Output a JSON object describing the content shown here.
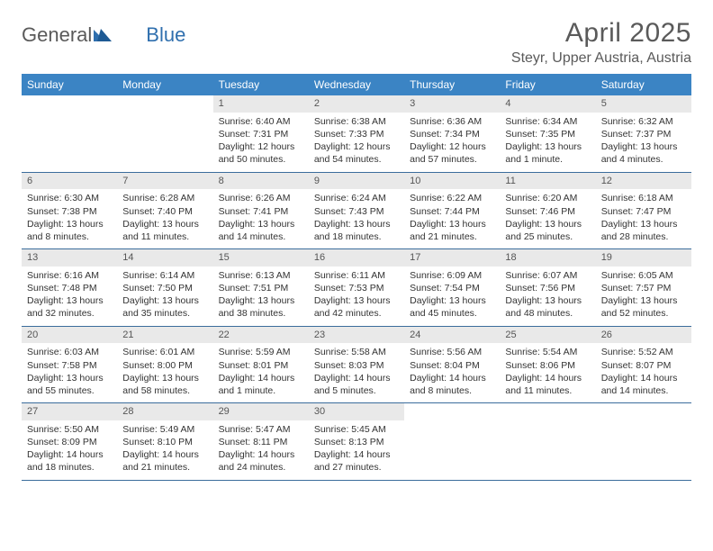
{
  "logo": {
    "text1": "General",
    "text2": "Blue"
  },
  "title": "April 2025",
  "location": "Steyr, Upper Austria, Austria",
  "colors": {
    "header_bg": "#3b84c4",
    "header_text": "#ffffff",
    "daynum_bg": "#e9e9e9",
    "row_border": "#3b6d9c",
    "body_text": "#333333",
    "title_text": "#5a5a5a"
  },
  "weekdays": [
    "Sunday",
    "Monday",
    "Tuesday",
    "Wednesday",
    "Thursday",
    "Friday",
    "Saturday"
  ],
  "weeks": [
    [
      {
        "empty": true
      },
      {
        "empty": true
      },
      {
        "day": "1",
        "sunrise": "Sunrise: 6:40 AM",
        "sunset": "Sunset: 7:31 PM",
        "daylight": "Daylight: 12 hours and 50 minutes."
      },
      {
        "day": "2",
        "sunrise": "Sunrise: 6:38 AM",
        "sunset": "Sunset: 7:33 PM",
        "daylight": "Daylight: 12 hours and 54 minutes."
      },
      {
        "day": "3",
        "sunrise": "Sunrise: 6:36 AM",
        "sunset": "Sunset: 7:34 PM",
        "daylight": "Daylight: 12 hours and 57 minutes."
      },
      {
        "day": "4",
        "sunrise": "Sunrise: 6:34 AM",
        "sunset": "Sunset: 7:35 PM",
        "daylight": "Daylight: 13 hours and 1 minute."
      },
      {
        "day": "5",
        "sunrise": "Sunrise: 6:32 AM",
        "sunset": "Sunset: 7:37 PM",
        "daylight": "Daylight: 13 hours and 4 minutes."
      }
    ],
    [
      {
        "day": "6",
        "sunrise": "Sunrise: 6:30 AM",
        "sunset": "Sunset: 7:38 PM",
        "daylight": "Daylight: 13 hours and 8 minutes."
      },
      {
        "day": "7",
        "sunrise": "Sunrise: 6:28 AM",
        "sunset": "Sunset: 7:40 PM",
        "daylight": "Daylight: 13 hours and 11 minutes."
      },
      {
        "day": "8",
        "sunrise": "Sunrise: 6:26 AM",
        "sunset": "Sunset: 7:41 PM",
        "daylight": "Daylight: 13 hours and 14 minutes."
      },
      {
        "day": "9",
        "sunrise": "Sunrise: 6:24 AM",
        "sunset": "Sunset: 7:43 PM",
        "daylight": "Daylight: 13 hours and 18 minutes."
      },
      {
        "day": "10",
        "sunrise": "Sunrise: 6:22 AM",
        "sunset": "Sunset: 7:44 PM",
        "daylight": "Daylight: 13 hours and 21 minutes."
      },
      {
        "day": "11",
        "sunrise": "Sunrise: 6:20 AM",
        "sunset": "Sunset: 7:46 PM",
        "daylight": "Daylight: 13 hours and 25 minutes."
      },
      {
        "day": "12",
        "sunrise": "Sunrise: 6:18 AM",
        "sunset": "Sunset: 7:47 PM",
        "daylight": "Daylight: 13 hours and 28 minutes."
      }
    ],
    [
      {
        "day": "13",
        "sunrise": "Sunrise: 6:16 AM",
        "sunset": "Sunset: 7:48 PM",
        "daylight": "Daylight: 13 hours and 32 minutes."
      },
      {
        "day": "14",
        "sunrise": "Sunrise: 6:14 AM",
        "sunset": "Sunset: 7:50 PM",
        "daylight": "Daylight: 13 hours and 35 minutes."
      },
      {
        "day": "15",
        "sunrise": "Sunrise: 6:13 AM",
        "sunset": "Sunset: 7:51 PM",
        "daylight": "Daylight: 13 hours and 38 minutes."
      },
      {
        "day": "16",
        "sunrise": "Sunrise: 6:11 AM",
        "sunset": "Sunset: 7:53 PM",
        "daylight": "Daylight: 13 hours and 42 minutes."
      },
      {
        "day": "17",
        "sunrise": "Sunrise: 6:09 AM",
        "sunset": "Sunset: 7:54 PM",
        "daylight": "Daylight: 13 hours and 45 minutes."
      },
      {
        "day": "18",
        "sunrise": "Sunrise: 6:07 AM",
        "sunset": "Sunset: 7:56 PM",
        "daylight": "Daylight: 13 hours and 48 minutes."
      },
      {
        "day": "19",
        "sunrise": "Sunrise: 6:05 AM",
        "sunset": "Sunset: 7:57 PM",
        "daylight": "Daylight: 13 hours and 52 minutes."
      }
    ],
    [
      {
        "day": "20",
        "sunrise": "Sunrise: 6:03 AM",
        "sunset": "Sunset: 7:58 PM",
        "daylight": "Daylight: 13 hours and 55 minutes."
      },
      {
        "day": "21",
        "sunrise": "Sunrise: 6:01 AM",
        "sunset": "Sunset: 8:00 PM",
        "daylight": "Daylight: 13 hours and 58 minutes."
      },
      {
        "day": "22",
        "sunrise": "Sunrise: 5:59 AM",
        "sunset": "Sunset: 8:01 PM",
        "daylight": "Daylight: 14 hours and 1 minute."
      },
      {
        "day": "23",
        "sunrise": "Sunrise: 5:58 AM",
        "sunset": "Sunset: 8:03 PM",
        "daylight": "Daylight: 14 hours and 5 minutes."
      },
      {
        "day": "24",
        "sunrise": "Sunrise: 5:56 AM",
        "sunset": "Sunset: 8:04 PM",
        "daylight": "Daylight: 14 hours and 8 minutes."
      },
      {
        "day": "25",
        "sunrise": "Sunrise: 5:54 AM",
        "sunset": "Sunset: 8:06 PM",
        "daylight": "Daylight: 14 hours and 11 minutes."
      },
      {
        "day": "26",
        "sunrise": "Sunrise: 5:52 AM",
        "sunset": "Sunset: 8:07 PM",
        "daylight": "Daylight: 14 hours and 14 minutes."
      }
    ],
    [
      {
        "day": "27",
        "sunrise": "Sunrise: 5:50 AM",
        "sunset": "Sunset: 8:09 PM",
        "daylight": "Daylight: 14 hours and 18 minutes."
      },
      {
        "day": "28",
        "sunrise": "Sunrise: 5:49 AM",
        "sunset": "Sunset: 8:10 PM",
        "daylight": "Daylight: 14 hours and 21 minutes."
      },
      {
        "day": "29",
        "sunrise": "Sunrise: 5:47 AM",
        "sunset": "Sunset: 8:11 PM",
        "daylight": "Daylight: 14 hours and 24 minutes."
      },
      {
        "day": "30",
        "sunrise": "Sunrise: 5:45 AM",
        "sunset": "Sunset: 8:13 PM",
        "daylight": "Daylight: 14 hours and 27 minutes."
      },
      {
        "empty": true
      },
      {
        "empty": true
      },
      {
        "empty": true
      }
    ]
  ]
}
